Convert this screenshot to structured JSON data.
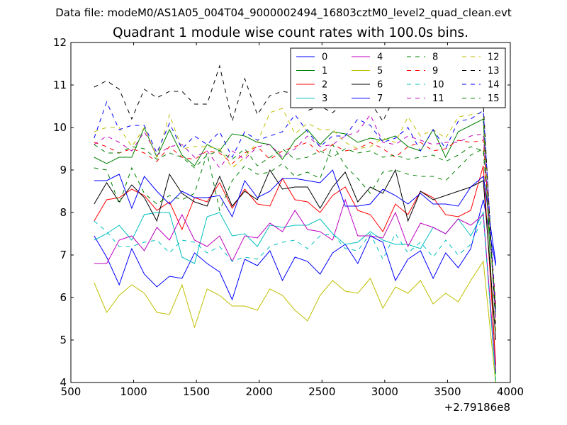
{
  "header": {
    "suptitle": "Data file: modeM0/AS1A05_004T04_9000002494_16803cztM0_level2_quad_clean.evt"
  },
  "chart_data": {
    "type": "line",
    "title": "Quadrant 1 module wise count rates with 100.0s bins.",
    "xlabel": "",
    "ylabel": "",
    "x_offset_label": "+2.79186e8",
    "xlim": [
      500,
      4000
    ],
    "ylim": [
      4,
      12
    ],
    "xticks": [
      500,
      1000,
      1500,
      2000,
      2500,
      3000,
      3500,
      4000
    ],
    "yticks": [
      4,
      5,
      6,
      7,
      8,
      9,
      10,
      11,
      12
    ],
    "grid": false,
    "legend_position": "top-right",
    "legend_columns": 4,
    "x": [
      685,
      785,
      885,
      985,
      1085,
      1185,
      1285,
      1385,
      1485,
      1585,
      1685,
      1785,
      1885,
      1985,
      2085,
      2185,
      2285,
      2385,
      2485,
      2585,
      2685,
      2785,
      2885,
      2985,
      3085,
      3185,
      3285,
      3385,
      3485,
      3585,
      3685,
      3785,
      3885
    ],
    "series": [
      {
        "name": "0",
        "color": "#0000ff",
        "style": "solid",
        "values": [
          7.45,
          6.95,
          6.3,
          7.15,
          6.55,
          6.25,
          6.5,
          6.45,
          7.05,
          6.8,
          6.6,
          5.95,
          6.9,
          6.75,
          7.1,
          6.4,
          6.95,
          6.85,
          6.55,
          7.05,
          7.25,
          6.8,
          7.45,
          7.3,
          6.4,
          6.9,
          7.1,
          6.45,
          7.05,
          6.7,
          7.15,
          8.3,
          6.75
        ]
      },
      {
        "name": "1",
        "color": "#008000",
        "style": "solid",
        "values": [
          9.3,
          9.15,
          9.3,
          9.3,
          10.0,
          9.3,
          9.95,
          9.35,
          9.1,
          9.6,
          9.45,
          9.85,
          9.8,
          9.65,
          9.6,
          9.25,
          9.7,
          9.95,
          9.6,
          9.9,
          9.85,
          9.65,
          9.75,
          9.7,
          9.8,
          9.55,
          9.45,
          9.95,
          9.3,
          9.9,
          10.05,
          10.2,
          4.2
        ]
      },
      {
        "name": "2",
        "color": "#ff0000",
        "style": "solid",
        "values": [
          7.8,
          8.3,
          8.35,
          8.55,
          8.4,
          8.05,
          8.25,
          7.6,
          8.35,
          8.25,
          8.7,
          8.1,
          8.55,
          8.2,
          8.15,
          8.8,
          8.3,
          8.25,
          8.0,
          8.4,
          8.6,
          8.05,
          7.95,
          7.55,
          8.2,
          7.95,
          8.5,
          8.35,
          7.95,
          7.9,
          8.05,
          9.1,
          4.4
        ]
      },
      {
        "name": "3",
        "color": "#00bfbf",
        "style": "solid",
        "values": [
          7.35,
          7.5,
          7.7,
          7.35,
          7.95,
          8.0,
          8.0,
          6.95,
          6.8,
          7.9,
          8.0,
          7.45,
          7.5,
          7.2,
          7.7,
          7.65,
          7.7,
          7.7,
          7.85,
          7.5,
          7.25,
          7.3,
          7.55,
          7.35,
          7.25,
          7.25,
          7.15,
          7.65,
          7.5,
          7.85,
          7.45,
          8.0,
          4.0
        ]
      },
      {
        "name": "4",
        "color": "#bf00bf",
        "style": "solid",
        "values": [
          6.8,
          6.8,
          7.35,
          7.45,
          7.1,
          7.65,
          7.35,
          7.95,
          7.35,
          7.2,
          7.45,
          6.85,
          7.45,
          7.4,
          7.75,
          7.55,
          8.05,
          7.6,
          7.55,
          7.35,
          8.3,
          7.45,
          7.45,
          7.4,
          8.0,
          7.2,
          7.75,
          7.65,
          7.5,
          7.85,
          7.7,
          7.95,
          4.25
        ]
      },
      {
        "name": "5",
        "color": "#bfbf00",
        "style": "solid",
        "values": [
          6.35,
          5.65,
          6.05,
          6.3,
          6.1,
          5.65,
          5.6,
          6.3,
          5.3,
          6.2,
          6.05,
          5.8,
          5.8,
          5.7,
          6.2,
          6.05,
          5.7,
          5.45,
          6.05,
          6.4,
          6.15,
          6.1,
          6.45,
          5.75,
          6.25,
          6.1,
          6.4,
          5.85,
          6.1,
          5.9,
          6.4,
          6.85,
          3.95
        ]
      },
      {
        "name": "6",
        "color": "#000000",
        "style": "solid",
        "values": [
          8.2,
          8.7,
          8.25,
          8.65,
          8.35,
          7.8,
          8.9,
          8.45,
          8.25,
          8.15,
          8.85,
          8.15,
          8.5,
          8.3,
          9.0,
          8.55,
          8.6,
          8.6,
          8.1,
          8.6,
          8.95,
          8.25,
          8.6,
          8.45,
          9.0,
          7.8,
          8.5,
          8.3,
          8.4,
          8.5,
          8.6,
          8.75,
          5.0
        ]
      },
      {
        "name": "7",
        "color": "#0000ff",
        "style": "solid",
        "values": [
          8.75,
          8.75,
          8.9,
          8.1,
          8.85,
          8.5,
          8.2,
          8.5,
          8.35,
          8.35,
          8.4,
          7.9,
          8.75,
          8.35,
          8.5,
          8.8,
          8.8,
          8.75,
          8.7,
          9.0,
          8.15,
          8.15,
          8.2,
          8.55,
          8.4,
          8.2,
          8.45,
          8.2,
          8.2,
          8.15,
          8.6,
          8.85,
          6.8
        ]
      },
      {
        "name": "8",
        "color": "#008000",
        "style": "dashed",
        "values": [
          9.05,
          9.0,
          8.2,
          9.05,
          8.45,
          8.2,
          8.4,
          8.3,
          8.45,
          9.4,
          8.05,
          8.75,
          9.1,
          8.9,
          8.95,
          9.15,
          8.85,
          8.95,
          8.8,
          9.6,
          9.1,
          8.8,
          8.45,
          8.95,
          9.0,
          8.9,
          8.85,
          8.85,
          8.75,
          9.05,
          9.35,
          9.5,
          5.7
        ]
      },
      {
        "name": "9",
        "color": "#ff0000",
        "style": "dashed",
        "values": [
          9.65,
          9.55,
          9.4,
          9.5,
          9.4,
          9.2,
          9.55,
          9.3,
          9.25,
          9.45,
          9.4,
          9.15,
          9.4,
          9.55,
          9.25,
          9.45,
          9.55,
          9.65,
          9.4,
          9.6,
          9.45,
          9.5,
          9.65,
          9.5,
          9.3,
          9.55,
          9.65,
          9.45,
          9.5,
          9.7,
          9.65,
          9.7,
          5.8
        ]
      },
      {
        "name": "10",
        "color": "#00bfbf",
        "style": "dashed",
        "values": [
          7.8,
          7.55,
          7.2,
          7.2,
          7.3,
          7.35,
          7.05,
          7.35,
          7.3,
          7.05,
          7.2,
          6.85,
          6.95,
          6.9,
          7.2,
          7.3,
          7.35,
          7.15,
          7.45,
          7.5,
          7.15,
          7.1,
          7.5,
          6.9,
          7.5,
          7.05,
          7.3,
          6.95,
          7.35,
          7.0,
          7.25,
          7.9,
          4.05
        ]
      },
      {
        "name": "11",
        "color": "#bf00bf",
        "style": "dashed",
        "values": [
          9.6,
          9.8,
          9.65,
          9.45,
          9.9,
          9.35,
          9.55,
          9.6,
          9.3,
          9.45,
          9.05,
          9.45,
          9.25,
          9.55,
          9.6,
          9.3,
          9.5,
          9.8,
          9.55,
          9.6,
          9.8,
          9.9,
          10.3,
          9.65,
          9.6,
          9.8,
          9.7,
          9.6,
          9.65,
          9.65,
          9.8,
          9.85,
          5.4
        ]
      },
      {
        "name": "12",
        "color": "#bfbf00",
        "style": "dashed",
        "values": [
          9.9,
          10.0,
          10.0,
          9.55,
          10.0,
          9.3,
          10.3,
          9.5,
          9.55,
          9.55,
          9.5,
          9.05,
          9.3,
          9.65,
          10.35,
          10.45,
          9.85,
          10.1,
          9.95,
          9.95,
          9.65,
          9.5,
          9.55,
          9.75,
          9.65,
          10.25,
          9.8,
          9.95,
          9.75,
          10.25,
          10.3,
          10.35,
          5.2
        ]
      },
      {
        "name": "13",
        "color": "#000000",
        "style": "dashed",
        "values": [
          10.95,
          11.1,
          10.9,
          10.2,
          10.9,
          10.7,
          10.85,
          10.85,
          10.55,
          10.55,
          11.45,
          10.15,
          11.15,
          10.3,
          10.75,
          10.85,
          10.8,
          10.4,
          10.5,
          10.35,
          10.6,
          10.6,
          10.6,
          10.15,
          10.75,
          10.6,
          10.6,
          10.65,
          10.65,
          10.6,
          10.6,
          10.55,
          5.3
        ]
      },
      {
        "name": "14",
        "color": "#0000ff",
        "style": "dashed",
        "values": [
          9.75,
          10.6,
          9.95,
          10.05,
          10.05,
          9.4,
          10.1,
          9.5,
          9.8,
          9.6,
          9.9,
          9.3,
          9.9,
          9.7,
          9.8,
          9.9,
          10.3,
          9.9,
          9.55,
          9.8,
          9.8,
          10.2,
          10.05,
          9.65,
          9.75,
          10.0,
          9.45,
          9.95,
          9.5,
          10.15,
          10.2,
          10.4,
          5.55
        ]
      },
      {
        "name": "15",
        "color": "#008000",
        "style": "dashed",
        "values": [
          9.6,
          9.4,
          9.4,
          9.55,
          9.5,
          9.25,
          9.4,
          9.3,
          9.05,
          9.35,
          9.45,
          9.25,
          9.5,
          9.1,
          9.3,
          9.5,
          9.25,
          9.3,
          9.45,
          9.3,
          9.5,
          9.4,
          9.45,
          9.3,
          9.35,
          9.25,
          9.3,
          9.35,
          9.2,
          9.35,
          9.55,
          9.45,
          5.7
        ]
      }
    ]
  }
}
